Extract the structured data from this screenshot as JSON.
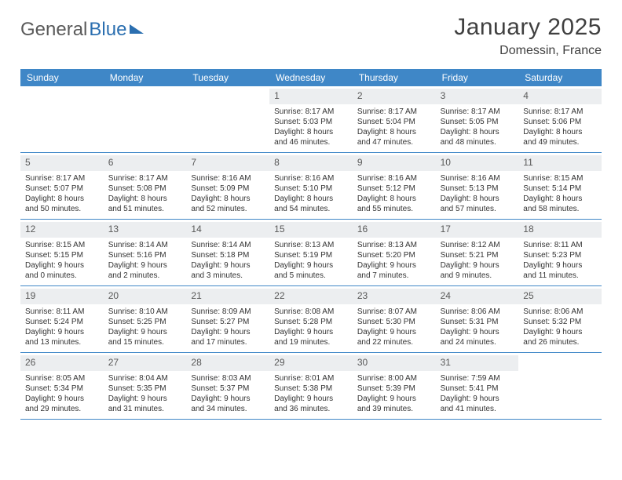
{
  "brand": {
    "part1": "General",
    "part2": "Blue"
  },
  "title": "January 2025",
  "location": "Domessin, France",
  "colors": {
    "header_bg": "#3f87c7",
    "header_text": "#ffffff",
    "daynum_bg": "#eceef0",
    "rule": "#3f87c7",
    "text": "#333333",
    "title_text": "#404040"
  },
  "day_names": [
    "Sunday",
    "Monday",
    "Tuesday",
    "Wednesday",
    "Thursday",
    "Friday",
    "Saturday"
  ],
  "weeks": [
    [
      {
        "empty": true
      },
      {
        "empty": true
      },
      {
        "empty": true
      },
      {
        "n": "1",
        "sr": "8:17 AM",
        "ss": "5:03 PM",
        "dl": "8 hours and 46 minutes."
      },
      {
        "n": "2",
        "sr": "8:17 AM",
        "ss": "5:04 PM",
        "dl": "8 hours and 47 minutes."
      },
      {
        "n": "3",
        "sr": "8:17 AM",
        "ss": "5:05 PM",
        "dl": "8 hours and 48 minutes."
      },
      {
        "n": "4",
        "sr": "8:17 AM",
        "ss": "5:06 PM",
        "dl": "8 hours and 49 minutes."
      }
    ],
    [
      {
        "n": "5",
        "sr": "8:17 AM",
        "ss": "5:07 PM",
        "dl": "8 hours and 50 minutes."
      },
      {
        "n": "6",
        "sr": "8:17 AM",
        "ss": "5:08 PM",
        "dl": "8 hours and 51 minutes."
      },
      {
        "n": "7",
        "sr": "8:16 AM",
        "ss": "5:09 PM",
        "dl": "8 hours and 52 minutes."
      },
      {
        "n": "8",
        "sr": "8:16 AM",
        "ss": "5:10 PM",
        "dl": "8 hours and 54 minutes."
      },
      {
        "n": "9",
        "sr": "8:16 AM",
        "ss": "5:12 PM",
        "dl": "8 hours and 55 minutes."
      },
      {
        "n": "10",
        "sr": "8:16 AM",
        "ss": "5:13 PM",
        "dl": "8 hours and 57 minutes."
      },
      {
        "n": "11",
        "sr": "8:15 AM",
        "ss": "5:14 PM",
        "dl": "8 hours and 58 minutes."
      }
    ],
    [
      {
        "n": "12",
        "sr": "8:15 AM",
        "ss": "5:15 PM",
        "dl": "9 hours and 0 minutes."
      },
      {
        "n": "13",
        "sr": "8:14 AM",
        "ss": "5:16 PM",
        "dl": "9 hours and 2 minutes."
      },
      {
        "n": "14",
        "sr": "8:14 AM",
        "ss": "5:18 PM",
        "dl": "9 hours and 3 minutes."
      },
      {
        "n": "15",
        "sr": "8:13 AM",
        "ss": "5:19 PM",
        "dl": "9 hours and 5 minutes."
      },
      {
        "n": "16",
        "sr": "8:13 AM",
        "ss": "5:20 PM",
        "dl": "9 hours and 7 minutes."
      },
      {
        "n": "17",
        "sr": "8:12 AM",
        "ss": "5:21 PM",
        "dl": "9 hours and 9 minutes."
      },
      {
        "n": "18",
        "sr": "8:11 AM",
        "ss": "5:23 PM",
        "dl": "9 hours and 11 minutes."
      }
    ],
    [
      {
        "n": "19",
        "sr": "8:11 AM",
        "ss": "5:24 PM",
        "dl": "9 hours and 13 minutes."
      },
      {
        "n": "20",
        "sr": "8:10 AM",
        "ss": "5:25 PM",
        "dl": "9 hours and 15 minutes."
      },
      {
        "n": "21",
        "sr": "8:09 AM",
        "ss": "5:27 PM",
        "dl": "9 hours and 17 minutes."
      },
      {
        "n": "22",
        "sr": "8:08 AM",
        "ss": "5:28 PM",
        "dl": "9 hours and 19 minutes."
      },
      {
        "n": "23",
        "sr": "8:07 AM",
        "ss": "5:30 PM",
        "dl": "9 hours and 22 minutes."
      },
      {
        "n": "24",
        "sr": "8:06 AM",
        "ss": "5:31 PM",
        "dl": "9 hours and 24 minutes."
      },
      {
        "n": "25",
        "sr": "8:06 AM",
        "ss": "5:32 PM",
        "dl": "9 hours and 26 minutes."
      }
    ],
    [
      {
        "n": "26",
        "sr": "8:05 AM",
        "ss": "5:34 PM",
        "dl": "9 hours and 29 minutes."
      },
      {
        "n": "27",
        "sr": "8:04 AM",
        "ss": "5:35 PM",
        "dl": "9 hours and 31 minutes."
      },
      {
        "n": "28",
        "sr": "8:03 AM",
        "ss": "5:37 PM",
        "dl": "9 hours and 34 minutes."
      },
      {
        "n": "29",
        "sr": "8:01 AM",
        "ss": "5:38 PM",
        "dl": "9 hours and 36 minutes."
      },
      {
        "n": "30",
        "sr": "8:00 AM",
        "ss": "5:39 PM",
        "dl": "9 hours and 39 minutes."
      },
      {
        "n": "31",
        "sr": "7:59 AM",
        "ss": "5:41 PM",
        "dl": "9 hours and 41 minutes."
      },
      {
        "empty": true
      }
    ]
  ],
  "labels": {
    "sunrise": "Sunrise:",
    "sunset": "Sunset:",
    "daylight": "Daylight:"
  }
}
